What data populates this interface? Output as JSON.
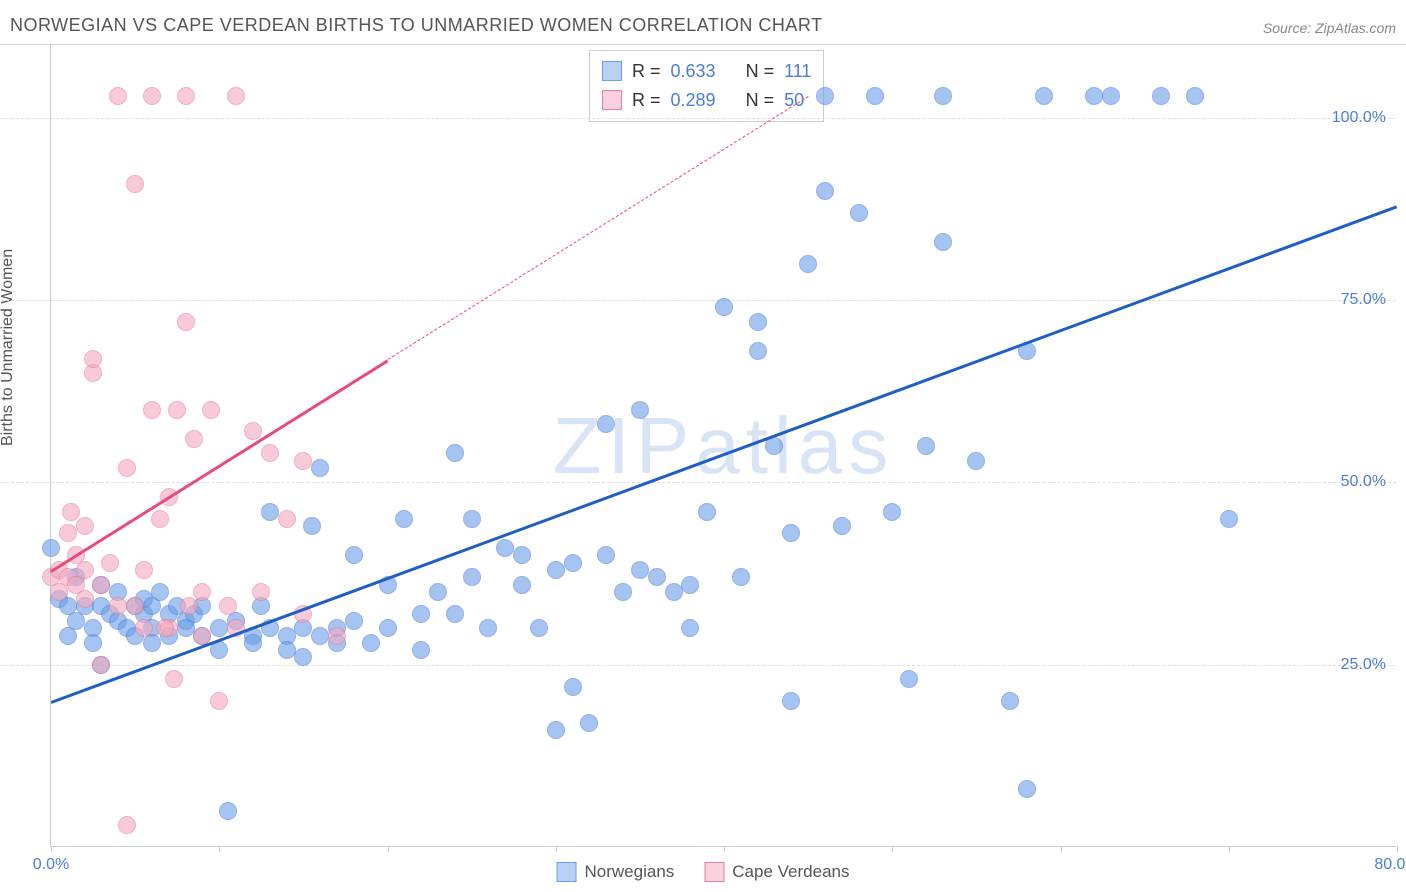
{
  "header": {
    "title": "NORWEGIAN VS CAPE VERDEAN BIRTHS TO UNMARRIED WOMEN CORRELATION CHART",
    "source": "Source: ZipAtlas.com"
  },
  "watermark": {
    "text": "ZIPatlas",
    "color": "#d8e4f5"
  },
  "chart": {
    "type": "scatter",
    "background_color": "#ffffff",
    "grid_color": "#dddddd",
    "axis_color": "#cccccc",
    "tick_label_color": "#4a7dd8",
    "tick_fontsize": 16,
    "ylabel": "Births to Unmarried Women",
    "ylabel_fontsize": 16,
    "ylabel_color": "#555555",
    "xlim": [
      0,
      80
    ],
    "ylim": [
      0,
      110
    ],
    "ytick_values": [
      25,
      50,
      75,
      100
    ],
    "ytick_labels": [
      "25.0%",
      "50.0%",
      "75.0%",
      "100.0%"
    ],
    "xtick_values": [
      0,
      10,
      20,
      30,
      40,
      50,
      60,
      70,
      80
    ],
    "xtick_labels": [
      "0.0%",
      "",
      "",
      "",
      "",
      "",
      "",
      "",
      "80.0%"
    ],
    "point_radius": 9,
    "point_fill_opacity": 0.35,
    "series": [
      {
        "name": "Norwegians",
        "color": "#6a9ee8",
        "stroke": "#4a7dd8",
        "R": "0.633",
        "N": "111",
        "trend": {
          "x1": 0,
          "y1": 20,
          "x2": 80,
          "y2": 88,
          "solid_until_x": 80,
          "color": "#1e5fc4",
          "width": 2.5
        },
        "points": [
          [
            0,
            41
          ],
          [
            0.5,
            34
          ],
          [
            1,
            33
          ],
          [
            1,
            29
          ],
          [
            1.5,
            37
          ],
          [
            1.5,
            31
          ],
          [
            2,
            33
          ],
          [
            2.5,
            30
          ],
          [
            2.5,
            28
          ],
          [
            3,
            36
          ],
          [
            3,
            33
          ],
          [
            3,
            25
          ],
          [
            3.5,
            32
          ],
          [
            4,
            35
          ],
          [
            4,
            31
          ],
          [
            4.5,
            30
          ],
          [
            5,
            33
          ],
          [
            5,
            29
          ],
          [
            5.5,
            32
          ],
          [
            5.5,
            34
          ],
          [
            6,
            30
          ],
          [
            6,
            33
          ],
          [
            6,
            28
          ],
          [
            6.5,
            35
          ],
          [
            7,
            32
          ],
          [
            7,
            29
          ],
          [
            7.5,
            33
          ],
          [
            8,
            31
          ],
          [
            8,
            30
          ],
          [
            8.5,
            32
          ],
          [
            9,
            29
          ],
          [
            9,
            33
          ],
          [
            10,
            30
          ],
          [
            10,
            27
          ],
          [
            10.5,
            5
          ],
          [
            11,
            31
          ],
          [
            12,
            29
          ],
          [
            12,
            28
          ],
          [
            12.5,
            33
          ],
          [
            13,
            30
          ],
          [
            13,
            46
          ],
          [
            14,
            29
          ],
          [
            14,
            27
          ],
          [
            15,
            30
          ],
          [
            15,
            26
          ],
          [
            15.5,
            44
          ],
          [
            16,
            29
          ],
          [
            16,
            52
          ],
          [
            17,
            30
          ],
          [
            17,
            28
          ],
          [
            18,
            31
          ],
          [
            18,
            40
          ],
          [
            19,
            28
          ],
          [
            20,
            30
          ],
          [
            20,
            36
          ],
          [
            21,
            45
          ],
          [
            22,
            32
          ],
          [
            22,
            27
          ],
          [
            23,
            35
          ],
          [
            24,
            32
          ],
          [
            24,
            54
          ],
          [
            25,
            37
          ],
          [
            25,
            45
          ],
          [
            26,
            30
          ],
          [
            27,
            41
          ],
          [
            28,
            40
          ],
          [
            28,
            36
          ],
          [
            29,
            30
          ],
          [
            30,
            38
          ],
          [
            30,
            16
          ],
          [
            31,
            39
          ],
          [
            31,
            22
          ],
          [
            32,
            17
          ],
          [
            33,
            40
          ],
          [
            33,
            58
          ],
          [
            34,
            35
          ],
          [
            35,
            60
          ],
          [
            35,
            38
          ],
          [
            36,
            37
          ],
          [
            37,
            35
          ],
          [
            38,
            36
          ],
          [
            38,
            30
          ],
          [
            39,
            46
          ],
          [
            40,
            74
          ],
          [
            41,
            37
          ],
          [
            42,
            72
          ],
          [
            42,
            68
          ],
          [
            43,
            55
          ],
          [
            44,
            43
          ],
          [
            44,
            20
          ],
          [
            45,
            80
          ],
          [
            46,
            90
          ],
          [
            46,
            103
          ],
          [
            47,
            44
          ],
          [
            48,
            87
          ],
          [
            49,
            103
          ],
          [
            50,
            46
          ],
          [
            51,
            23
          ],
          [
            52,
            55
          ],
          [
            53,
            103
          ],
          [
            53,
            83
          ],
          [
            55,
            53
          ],
          [
            57,
            20
          ],
          [
            58,
            68
          ],
          [
            59,
            103
          ],
          [
            62,
            103
          ],
          [
            63,
            103
          ],
          [
            66,
            103
          ],
          [
            68,
            103
          ],
          [
            70,
            45
          ],
          [
            58,
            8
          ]
        ]
      },
      {
        "name": "Cape Verdeans",
        "color": "#f5a8bd",
        "stroke": "#ec7a9c",
        "R": "0.289",
        "N": "50",
        "trend": {
          "x1": 0,
          "y1": 38,
          "x2": 45,
          "y2": 103,
          "solid_until_x": 20,
          "color": "#e84a7a",
          "width": 2.5
        },
        "points": [
          [
            0,
            37
          ],
          [
            0.5,
            38
          ],
          [
            0.5,
            35
          ],
          [
            1,
            37
          ],
          [
            1,
            43
          ],
          [
            1.2,
            46
          ],
          [
            1.5,
            40
          ],
          [
            1.5,
            36
          ],
          [
            2,
            34
          ],
          [
            2,
            38
          ],
          [
            2,
            44
          ],
          [
            2.5,
            65
          ],
          [
            2.5,
            67
          ],
          [
            3,
            36
          ],
          [
            3,
            25
          ],
          [
            3.5,
            39
          ],
          [
            4,
            33
          ],
          [
            4,
            103
          ],
          [
            4.5,
            52
          ],
          [
            5,
            91
          ],
          [
            5,
            33
          ],
          [
            5.5,
            30
          ],
          [
            6,
            60
          ],
          [
            6,
            103
          ],
          [
            6.5,
            45
          ],
          [
            7,
            30
          ],
          [
            7,
            48
          ],
          [
            7.5,
            60
          ],
          [
            8,
            72
          ],
          [
            8,
            103
          ],
          [
            8.5,
            56
          ],
          [
            9,
            29
          ],
          [
            9,
            35
          ],
          [
            9.5,
            60
          ],
          [
            10,
            20
          ],
          [
            10.5,
            33
          ],
          [
            11,
            30
          ],
          [
            11,
            103
          ],
          [
            12,
            57
          ],
          [
            12.5,
            35
          ],
          [
            13,
            54
          ],
          [
            14,
            45
          ],
          [
            15,
            32
          ],
          [
            15,
            53
          ],
          [
            17,
            29
          ],
          [
            4.5,
            3
          ],
          [
            5.5,
            38
          ],
          [
            6.8,
            30
          ],
          [
            7.3,
            23
          ],
          [
            8.2,
            33
          ]
        ]
      }
    ],
    "legend": {
      "items": [
        {
          "label": "Norwegians",
          "fill": "#b8d0f2",
          "stroke": "#6a9ee8"
        },
        {
          "label": "Cape Verdeans",
          "fill": "#fad2de",
          "stroke": "#ec7a9c"
        }
      ]
    },
    "stats_box": {
      "border_color": "#cccccc",
      "rows": [
        {
          "swatch_fill": "#b8d0f2",
          "swatch_stroke": "#6a9ee8",
          "r_label": "R =",
          "r_val": "0.633",
          "n_label": "N =",
          "n_val": "111"
        },
        {
          "swatch_fill": "#fad2de",
          "swatch_stroke": "#ec7a9c",
          "r_label": "R =",
          "r_val": "0.289",
          "n_label": "N =",
          "n_val": "50"
        }
      ]
    }
  }
}
